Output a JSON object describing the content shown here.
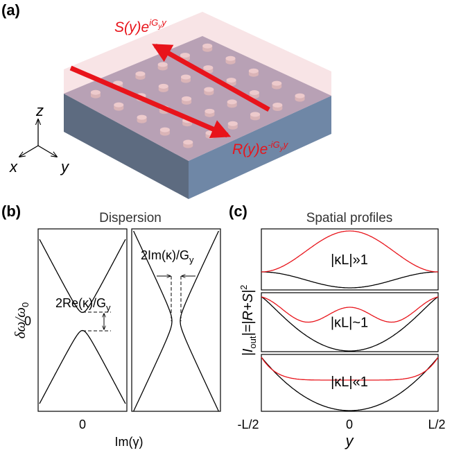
{
  "panel_a": {
    "label": "(a)",
    "s_wave": {
      "base": "S(y)e",
      "sup": "iG",
      "sup_sub": "y",
      "sup_end": "y"
    },
    "r_wave": {
      "base": "R(y)e",
      "sup": "-iG",
      "sup_sub": "y",
      "sup_end": "y"
    },
    "axes": {
      "z": "z",
      "x": "x",
      "y": "y"
    }
  },
  "panel_b": {
    "label": "(b)",
    "title": "Dispersion",
    "y_label": {
      "base": "δω/ω",
      "sub": "0"
    },
    "y_tick": "0",
    "x_tick": "0",
    "x_label": "Im(γ)",
    "gap_re": {
      "base": "2Re(κ)/G",
      "sub": "y"
    },
    "gap_im": {
      "base": "2Im(κ)/G",
      "sub": "y"
    }
  },
  "panel_c": {
    "label": "(c)",
    "title": "Spatial profiles",
    "y_label": {
      "a": "|I",
      "sub": "out",
      "b": "|=|R+S|",
      "sup": "2"
    },
    "regimes": [
      "|κL|»1",
      "|κL|~1",
      "|κL|«1"
    ],
    "x_ticks": [
      "-L/2",
      "0",
      "L/2"
    ],
    "x_label": "y"
  }
}
